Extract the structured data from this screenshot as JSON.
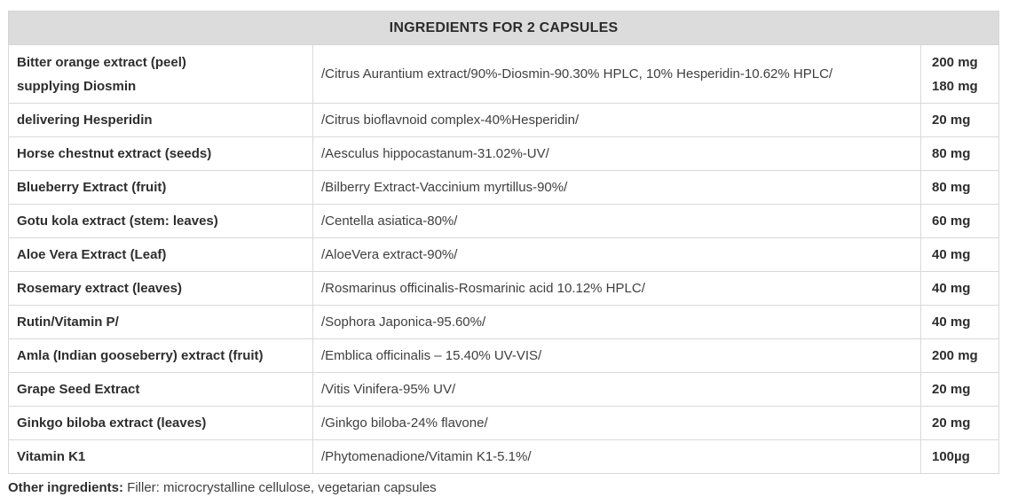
{
  "table": {
    "title": "INGREDIENTS FOR 2 CAPSULES",
    "rows": [
      {
        "name_lines": [
          "Bitter orange extract (peel)",
          "supplying Diosmin"
        ],
        "description": "/Citrus Aurantium extract/90%-Diosmin-90.30% HPLC, 10% Hesperidin-10.62% HPLC/",
        "amount_lines": [
          "200 mg",
          "180 mg"
        ]
      },
      {
        "name_lines": [
          "delivering Hesperidin"
        ],
        "description": "/Citrus bioflavnoid complex-40%Hesperidin/",
        "amount_lines": [
          "20 mg"
        ]
      },
      {
        "name_lines": [
          "Horse chestnut extract (seeds)"
        ],
        "description": "/Aesculus hippocastanum-31.02%-UV/",
        "amount_lines": [
          "80 mg"
        ]
      },
      {
        "name_lines": [
          "Blueberry Extract (fruit)"
        ],
        "description": "/Bilberry Extract-Vaccinium myrtillus-90%/",
        "amount_lines": [
          "80 mg"
        ]
      },
      {
        "name_lines": [
          "Gotu kola extract (stem: leaves)"
        ],
        "description": "/Centella asiatica-80%/",
        "amount_lines": [
          "60 mg"
        ]
      },
      {
        "name_lines": [
          "Aloe Vera Extract (Leaf)"
        ],
        "description": "/AloeVera extract-90%/",
        "amount_lines": [
          "40 mg"
        ]
      },
      {
        "name_lines": [
          "Rosemary extract (leaves)"
        ],
        "description": "/Rosmarinus officinalis-Rosmarinic acid 10.12% HPLC/",
        "amount_lines": [
          "40 mg"
        ]
      },
      {
        "name_lines": [
          "Rutin/Vitamin P/"
        ],
        "description": "/Sophora Japonica-95.60%/",
        "amount_lines": [
          "40 mg"
        ]
      },
      {
        "name_lines": [
          "Amla (Indian gooseberry) extract (fruit)"
        ],
        "description": "/Emblica officinalis – 15.40% UV-VIS/",
        "amount_lines": [
          "200 mg"
        ]
      },
      {
        "name_lines": [
          "Grape Seed Extract"
        ],
        "description": "/Vitis Vinifera-95% UV/",
        "amount_lines": [
          "20 mg"
        ]
      },
      {
        "name_lines": [
          "Ginkgo biloba extract (leaves)"
        ],
        "description": "/Ginkgo biloba-24% flavone/",
        "amount_lines": [
          "20 mg"
        ]
      },
      {
        "name_lines": [
          "Vitamin K1"
        ],
        "description": "/Phytomenadione/Vitamin K1-5.1%/",
        "amount_lines": [
          "100µg"
        ]
      }
    ]
  },
  "footer": {
    "label": "Other ingredients:",
    "text": " Filler: microcrystalline cellulose, vegetarian capsules"
  },
  "colors": {
    "header_background": "#dcdcdc",
    "cell_border": "#d9d9d9",
    "text_primary": "#2e2e2e",
    "text_secondary": "#3f3f3f"
  }
}
